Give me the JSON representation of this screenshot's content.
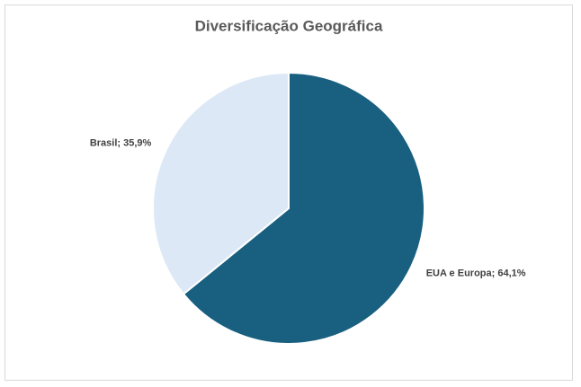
{
  "chart_data": {
    "type": "pie",
    "title": "Diversificação Geográfica",
    "values": [
      64.1,
      35.9
    ],
    "value_labels": [
      "EUA e Europa; 64,1%",
      "Brasil; 35,9%"
    ],
    "colors": [
      "#185f80",
      "#dce8f5"
    ]
  }
}
